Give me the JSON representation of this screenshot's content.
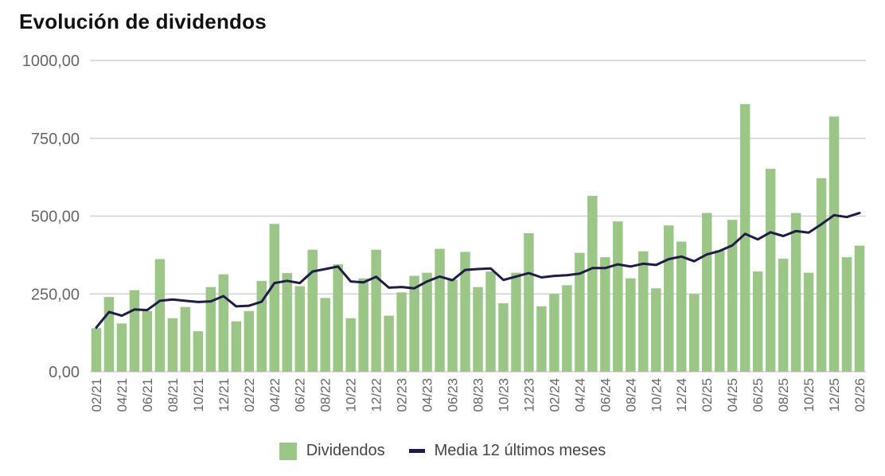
{
  "title": "Evolución de dividendos",
  "chart_data": {
    "type": "bar",
    "title": "Evolución de dividendos",
    "xlabel": "",
    "ylabel": "",
    "ylim": [
      0,
      1000
    ],
    "yticks": [
      "0,00",
      "250,00",
      "500,00",
      "750,00",
      "1000,00"
    ],
    "ytick_values": [
      0,
      250,
      500,
      750,
      1000
    ],
    "grid": true,
    "legend_position": "bottom",
    "categories": [
      "02/21",
      "03/21",
      "04/21",
      "05/21",
      "06/21",
      "07/21",
      "08/21",
      "09/21",
      "10/21",
      "11/21",
      "12/21",
      "01/22",
      "02/22",
      "03/22",
      "04/22",
      "05/22",
      "06/22",
      "07/22",
      "08/22",
      "09/22",
      "10/22",
      "11/22",
      "12/22",
      "01/23",
      "02/23",
      "03/23",
      "04/23",
      "05/23",
      "06/23",
      "07/23",
      "08/23",
      "09/23",
      "10/23",
      "11/23",
      "12/23",
      "01/24",
      "02/24",
      "03/24",
      "04/24",
      "05/24",
      "06/24",
      "07/24",
      "08/24",
      "09/24",
      "10/24",
      "11/24",
      "12/24",
      "01/25",
      "02/25",
      "03/25",
      "04/25",
      "05/25",
      "06/25",
      "07/25",
      "08/25",
      "09/25",
      "10/25",
      "11/25",
      "12/25",
      "01/26",
      "02/26"
    ],
    "visible_tick_labels": [
      "02/21",
      "04/21",
      "06/21",
      "08/21",
      "10/21",
      "12/21",
      "02/22",
      "04/22",
      "06/22",
      "08/22",
      "10/22",
      "12/22",
      "02/23",
      "04/23",
      "06/23",
      "08/23",
      "10/23",
      "12/23",
      "02/24",
      "04/24",
      "06/24",
      "08/24",
      "10/24",
      "12/24",
      "02/25",
      "04/25",
      "06/25",
      "08/25",
      "10/25",
      "12/25",
      "02/26"
    ],
    "series": [
      {
        "name": "Dividendos",
        "type": "bar",
        "color": "#9cc686",
        "values": [
          140,
          240,
          155,
          262,
          195,
          362,
          172,
          208,
          130,
          272,
          313,
          162,
          195,
          292,
          475,
          317,
          275,
          392,
          237,
          345,
          172,
          300,
          392,
          180,
          255,
          308,
          318,
          395,
          296,
          385,
          272,
          322,
          220,
          318,
          445,
          210,
          250,
          278,
          382,
          565,
          368,
          483,
          300,
          387,
          268,
          470,
          418,
          250,
          510,
          390,
          488,
          860,
          322,
          652,
          363,
          510,
          318,
          622,
          820,
          368,
          405
        ]
      },
      {
        "name": "Media 12 últimos meses",
        "type": "line",
        "color": "#1f1b4b",
        "values": [
          142,
          192,
          180,
          200,
          198,
          228,
          232,
          228,
          224,
          226,
          243,
          210,
          212,
          225,
          285,
          292,
          285,
          322,
          330,
          338,
          290,
          287,
          305,
          270,
          272,
          268,
          290,
          306,
          294,
          327,
          330,
          332,
          295,
          306,
          317,
          303,
          308,
          310,
          315,
          333,
          333,
          345,
          338,
          347,
          343,
          362,
          370,
          355,
          377,
          388,
          406,
          443,
          425,
          448,
          436,
          452,
          447,
          474,
          503,
          497,
          510
        ]
      }
    ]
  },
  "legend": {
    "bar_label": "Dividendos",
    "line_label": "Media 12 últimos meses"
  }
}
